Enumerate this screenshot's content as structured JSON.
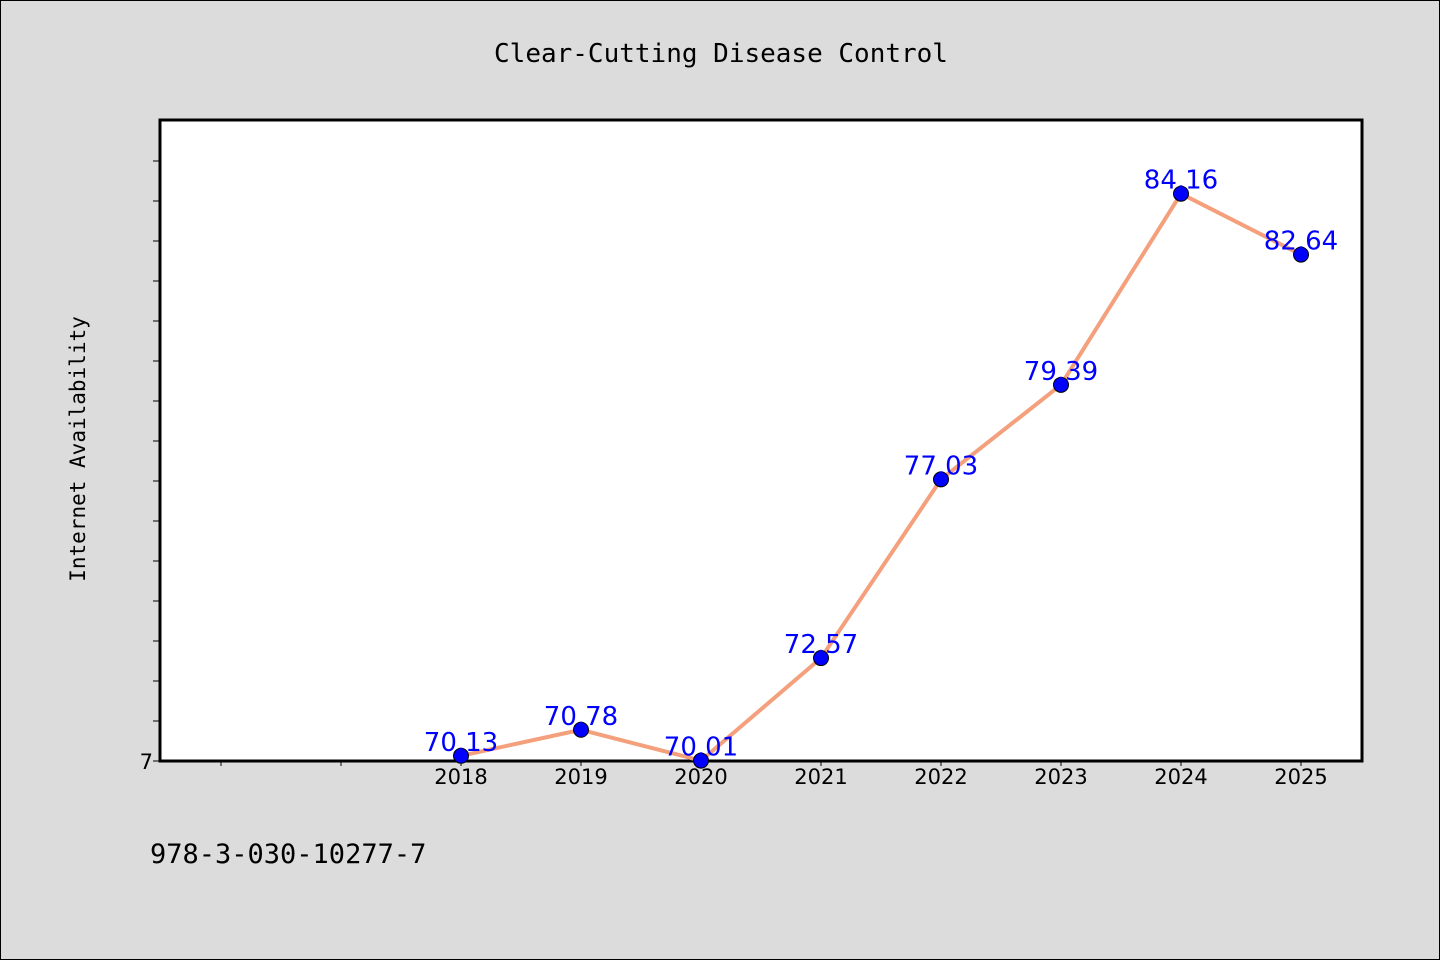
{
  "chart_data": {
    "type": "line",
    "title": "Clear-Cutting Disease Control",
    "xlabel": "",
    "ylabel": "Internet Availability",
    "categories": [
      "2018",
      "2019",
      "2020",
      "2021",
      "2022",
      "2023",
      "2024",
      "2025"
    ],
    "series": [
      {
        "values": [
          70.13,
          70.78,
          70.01,
          72.57,
          77.03,
          79.39,
          84.16,
          82.64
        ],
        "data_labels": [
          "70.13",
          "70.78",
          "70.01",
          "72.57",
          "77.03",
          "79.39",
          "84.16",
          "82.64"
        ],
        "line_color": "#f4a07c",
        "marker_color": "#0000ff"
      }
    ],
    "ylim": [
      70,
      86
    ],
    "y_tick_label": "7",
    "grid": false,
    "legend": "none"
  },
  "footer_text": "978-3-030-10277-7",
  "colors": {
    "background": "#dcdcdc",
    "plot_background": "#ffffff",
    "line": "#f4a07c",
    "marker": "#0000ff",
    "data_label": "#0000ff"
  }
}
